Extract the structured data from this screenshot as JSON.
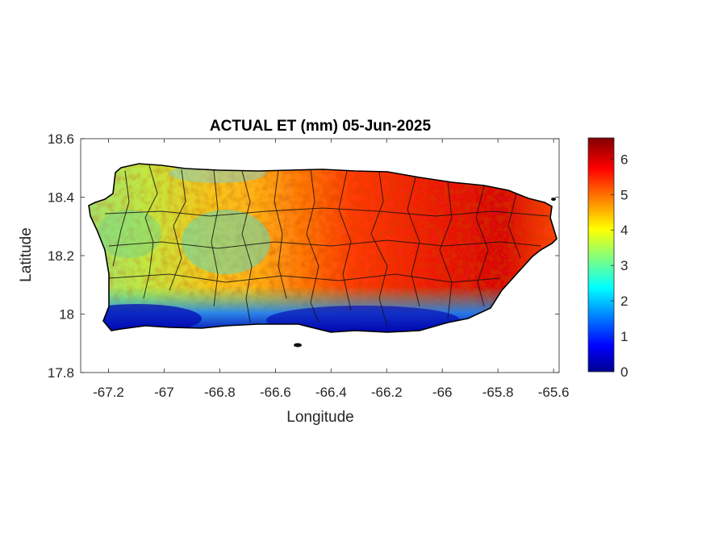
{
  "title": "ACTUAL ET (mm) 05-Jun-2025",
  "x_label": "Longitude",
  "y_label": "Latitude",
  "x_ticks": [
    "-67.2",
    "-67",
    "-66.8",
    "-66.6",
    "-66.4",
    "-66.2",
    "-66",
    "-65.8",
    "-65.6"
  ],
  "y_ticks": [
    "18.6",
    "18.4",
    "18.2",
    "18"
  ],
  "y_tick_bottom": "17.8",
  "colorbar_ticks": [
    "6",
    "5",
    "4",
    "3",
    "2",
    "1",
    "0"
  ],
  "colormap": "jet",
  "chart_data": {
    "type": "heatmap",
    "title": "ACTUAL ET (mm) 05-Jun-2025",
    "xlabel": "Longitude",
    "ylabel": "Latitude",
    "xlim": [
      -67.3,
      -65.58
    ],
    "ylim": [
      17.8,
      18.6
    ],
    "color_range": [
      0,
      6.6
    ],
    "colorbar_ticks": [
      0,
      1,
      2,
      3,
      4,
      5,
      6
    ],
    "grid": false,
    "region_values": [
      {
        "lon": -67.2,
        "lat": 18.1,
        "value": 3.5
      },
      {
        "lon": -67.0,
        "lat": 18.3,
        "value": 3.8
      },
      {
        "lon": -66.8,
        "lat": 18.3,
        "value": 3.2
      },
      {
        "lon": -66.6,
        "lat": 18.2,
        "value": 4.3
      },
      {
        "lon": -66.4,
        "lat": 18.3,
        "value": 5.6
      },
      {
        "lon": -66.2,
        "lat": 18.2,
        "value": 5.5
      },
      {
        "lon": -66.0,
        "lat": 18.3,
        "value": 5.9
      },
      {
        "lon": -65.8,
        "lat": 18.2,
        "value": 6.0
      },
      {
        "lon": -67.0,
        "lat": 17.96,
        "value": 0.2
      },
      {
        "lon": -66.4,
        "lat": 17.98,
        "value": 0.4
      },
      {
        "lon": -66.1,
        "lat": 17.98,
        "value": 1.0
      }
    ]
  }
}
